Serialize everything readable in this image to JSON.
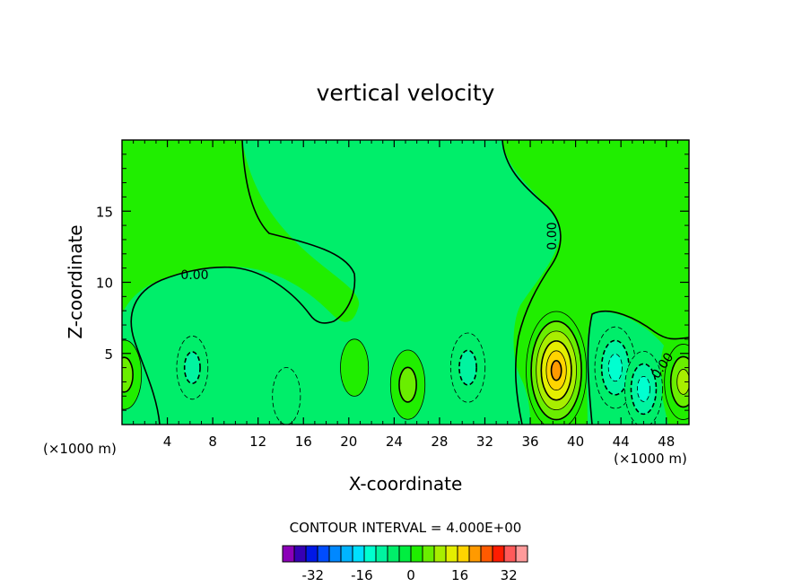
{
  "chart_data": {
    "type": "heatmap",
    "title": "vertical velocity",
    "xlabel": "X-coordinate",
    "ylabel": "Z-coordinate",
    "x_unit_left": "(×1000 m)",
    "x_unit_right": "(×1000 m)",
    "xlim": [
      0,
      50
    ],
    "ylim": [
      0,
      20
    ],
    "x_ticks": [
      4,
      8,
      12,
      16,
      20,
      24,
      28,
      32,
      36,
      40,
      44,
      48
    ],
    "y_ticks": [
      5,
      10,
      15
    ],
    "contour_labels": [
      "0.00",
      "0.00",
      "0.00"
    ],
    "contour_interval_text": "CONTOUR INTERVAL = 4.000E+00",
    "colorbar": {
      "ticks": [
        "-32",
        "-16",
        "0",
        "16",
        "32"
      ],
      "tick_values": [
        -32,
        -16,
        0,
        16,
        32
      ],
      "levels": [
        -40,
        -36,
        -32,
        -28,
        -24,
        -20,
        -16,
        -12,
        -8,
        -4,
        0,
        4,
        8,
        12,
        16,
        20,
        24,
        28,
        32,
        36,
        40
      ],
      "colors": [
        "#8b00b8",
        "#3600b4",
        "#0018e6",
        "#004cff",
        "#0088ff",
        "#00b4ff",
        "#00e0ff",
        "#00ffd0",
        "#00f4a0",
        "#00ee6a",
        "#00ee40",
        "#20ee00",
        "#6aee00",
        "#a8ee00",
        "#e4ee00",
        "#ffd400",
        "#ff9a00",
        "#ff5a00",
        "#ff1c00",
        "#ff5a5a",
        "#ff9a9a"
      ]
    },
    "features": [
      {
        "x": 38.3,
        "z": 3.8,
        "peak": 24,
        "kind": "updraft"
      },
      {
        "x": 49.5,
        "z": 3.0,
        "peak": 10,
        "kind": "updraft"
      },
      {
        "x": 0.2,
        "z": 3.5,
        "peak": 8,
        "kind": "updraft"
      },
      {
        "x": 25.2,
        "z": 2.8,
        "peak": 8,
        "kind": "updraft"
      },
      {
        "x": 20.5,
        "z": 4.0,
        "peak": 4,
        "kind": "updraft"
      },
      {
        "x": 43.5,
        "z": 4.0,
        "peak": -12,
        "kind": "downdraft"
      },
      {
        "x": 46.0,
        "z": 2.5,
        "peak": -10,
        "kind": "downdraft"
      },
      {
        "x": 30.5,
        "z": 4.0,
        "peak": -8,
        "kind": "downdraft"
      },
      {
        "x": 6.2,
        "z": 4.0,
        "peak": -6,
        "kind": "downdraft"
      },
      {
        "x": 14.5,
        "z": 2.0,
        "peak": -4,
        "kind": "downdraft"
      }
    ]
  }
}
